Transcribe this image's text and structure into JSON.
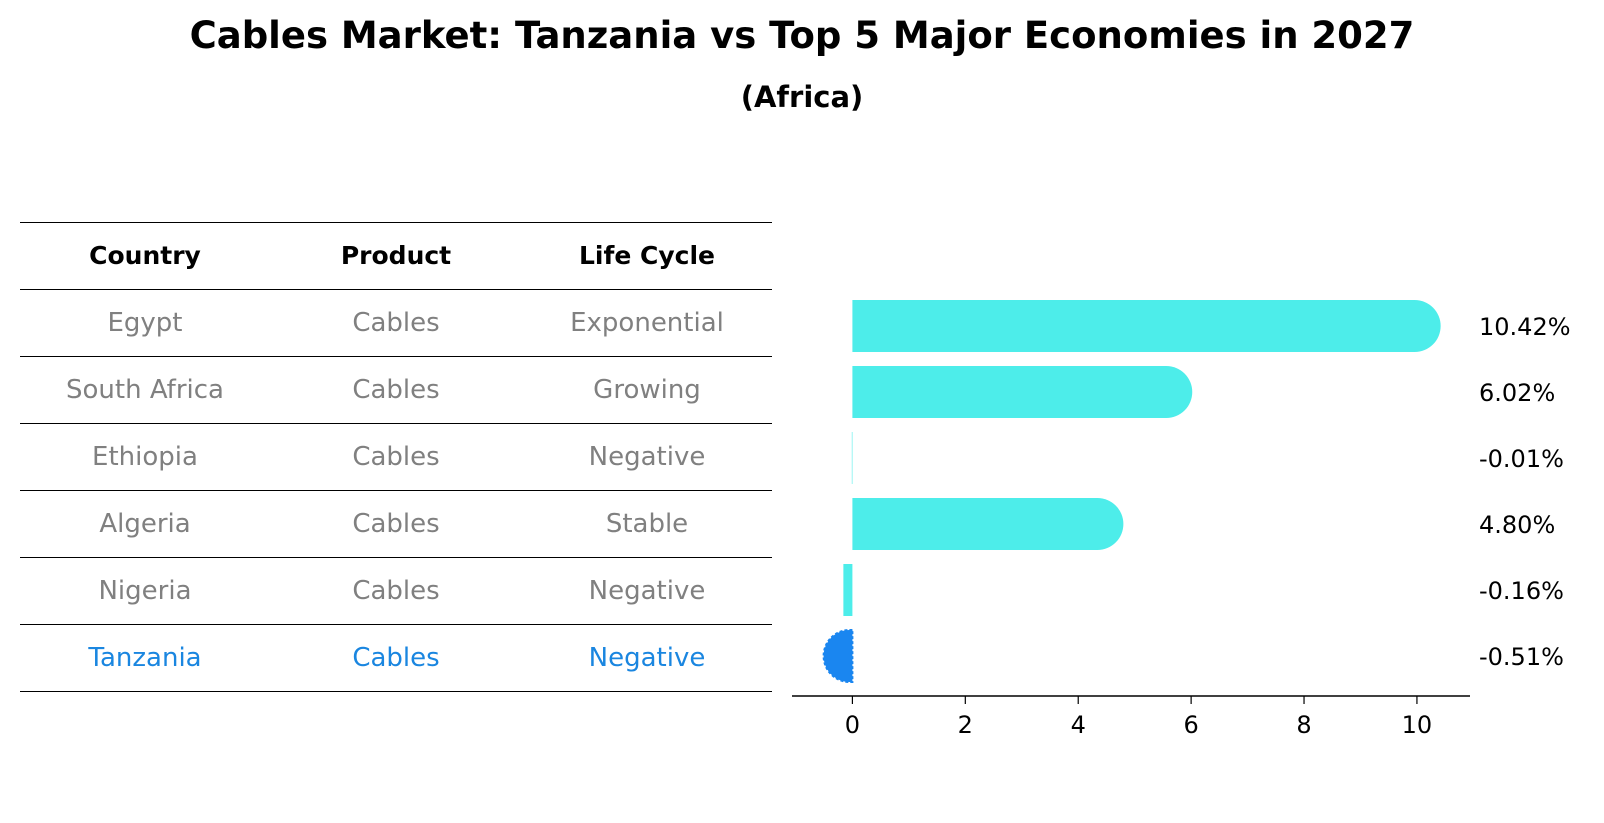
{
  "title": "Cables Market: Tanzania vs Top 5 Major Economies in 2027",
  "subtitle": "(Africa)",
  "table": {
    "headers": [
      "Country",
      "Product",
      "Life Cycle"
    ],
    "rows": [
      [
        "Egypt",
        "Cables",
        "Exponential"
      ],
      [
        "South Africa",
        "Cables",
        "Growing"
      ],
      [
        "Ethiopia",
        "Cables",
        "Negative"
      ],
      [
        "Algeria",
        "Cables",
        "Stable"
      ],
      [
        "Nigeria",
        "Cables",
        "Negative"
      ],
      [
        "Tanzania",
        "Cables",
        "Negative"
      ]
    ]
  },
  "colors": {
    "bar": "#4dedea",
    "highlight": "#1a86e0",
    "highlight_bar": "#1a86f0",
    "muted_text": "#808080"
  },
  "chart_data": {
    "type": "bar",
    "orientation": "horizontal",
    "title": "Cables Market: Tanzania vs Top 5 Major Economies in 2027",
    "subtitle": "(Africa)",
    "categories": [
      "Egypt",
      "South Africa",
      "Ethiopia",
      "Algeria",
      "Nigeria",
      "Tanzania"
    ],
    "values": [
      10.42,
      6.02,
      -0.01,
      4.8,
      -0.16,
      -0.51
    ],
    "value_labels": [
      "10.42%",
      "6.02%",
      "-0.01%",
      "4.80%",
      "-0.16%",
      "-0.51%"
    ],
    "highlight": "Tanzania",
    "xlim": [
      -1.07,
      10.94
    ],
    "xticks": [
      0,
      2,
      4,
      6,
      8,
      10
    ],
    "xtick_labels": [
      "0",
      "2",
      "4",
      "6",
      "8",
      "10"
    ],
    "xlabel": "",
    "ylabel": "",
    "grid": false
  }
}
